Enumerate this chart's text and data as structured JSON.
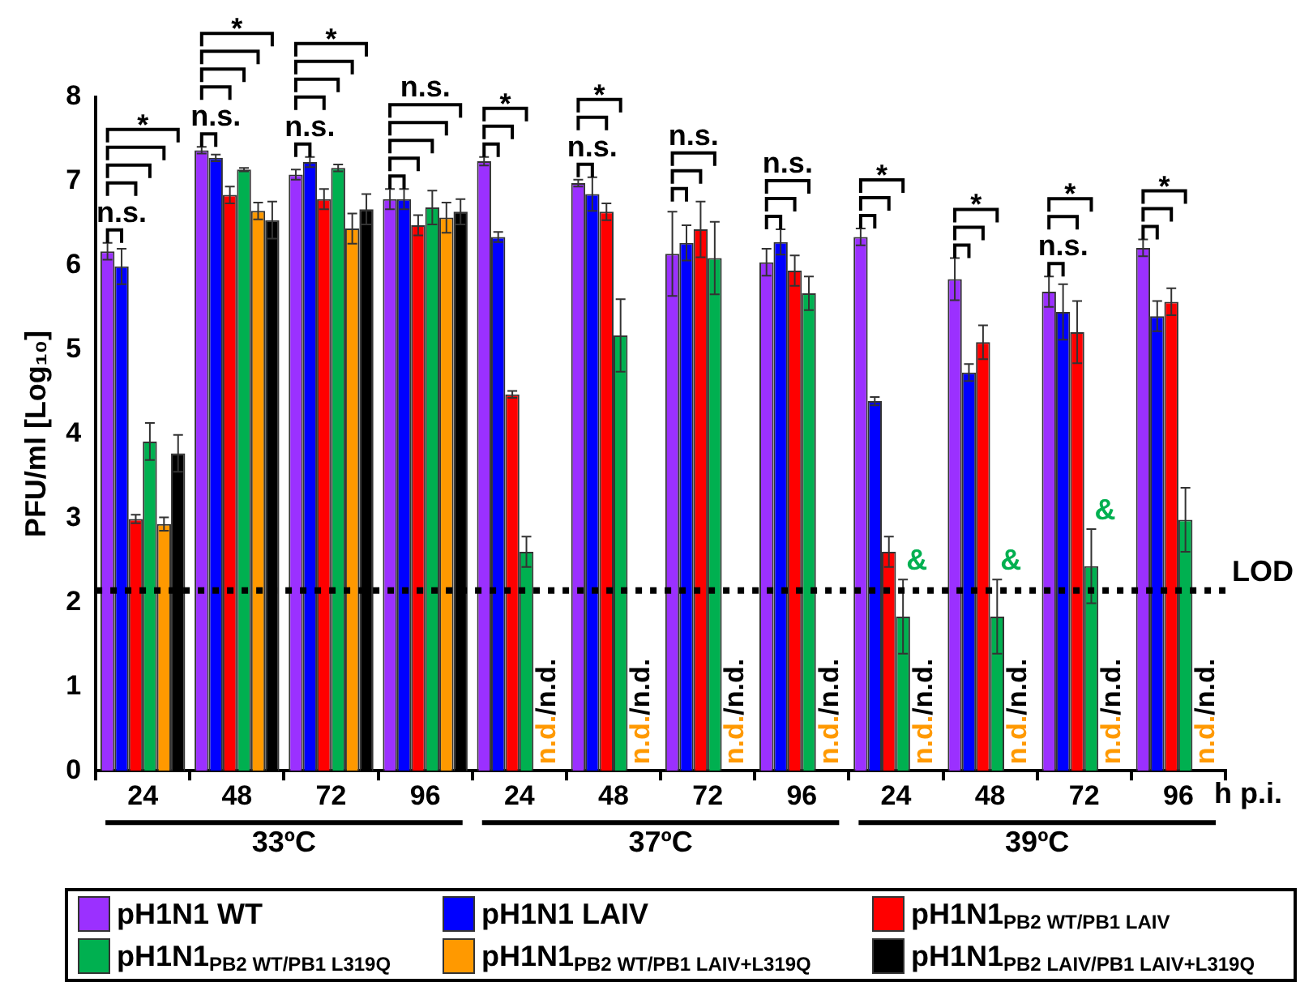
{
  "chart_data": {
    "type": "bar",
    "ylabel": "PFU/ml [Log₁₀]",
    "xlabel": "h p.i.",
    "categories": [
      "24",
      "48",
      "72",
      "96",
      "24",
      "48",
      "72",
      "96",
      "24",
      "48",
      "72",
      "96"
    ],
    "ylim": [
      0,
      8
    ],
    "yticks": [
      0,
      1,
      2,
      3,
      4,
      5,
      6,
      7,
      8
    ],
    "legend": "bottom",
    "series": [
      {
        "name": "pH1N1 WT",
        "color": "#9b30ff",
        "values": [
          6.17,
          7.37,
          7.08,
          6.79,
          7.24,
          6.98,
          6.14,
          6.04,
          6.34,
          5.84,
          5.69,
          6.21
        ],
        "errors": [
          0.1,
          0.04,
          0.06,
          0.12,
          0.05,
          0.04,
          0.5,
          0.16,
          0.1,
          0.25,
          0.18,
          0.1
        ]
      },
      {
        "name": "pH1N1 LAIV",
        "color": "#0000ff",
        "values": [
          5.99,
          7.28,
          7.23,
          6.79,
          6.34,
          6.85,
          6.27,
          6.28,
          4.39,
          4.73,
          5.45,
          5.4
        ],
        "errors": [
          0.21,
          0.04,
          0.06,
          0.12,
          0.06,
          0.2,
          0.21,
          0.15,
          0.05,
          0.1,
          0.33,
          0.18
        ]
      },
      {
        "name": "pH1N1$_{PB2 WT/PB1 LAIV}$",
        "color": "#ff0000",
        "values": [
          2.99,
          6.84,
          6.79,
          6.48,
          4.47,
          6.64,
          6.43,
          5.94,
          2.6,
          5.09,
          5.21,
          5.57
        ],
        "errors": [
          0.05,
          0.1,
          0.12,
          0.12,
          0.04,
          0.1,
          0.33,
          0.18,
          0.18,
          0.2,
          0.37,
          0.16
        ]
      },
      {
        "name": "pH1N1$_{PB2 WT/PB1 L319Q}$",
        "color": "#00b050",
        "values": [
          3.91,
          7.14,
          7.16,
          6.69,
          2.6,
          5.17,
          6.09,
          5.67,
          1.83,
          1.83,
          2.43,
          2.98
        ],
        "errors": [
          0.22,
          0.02,
          0.04,
          0.2,
          0.18,
          0.43,
          0.43,
          0.2,
          0.44,
          0.44,
          0.44,
          0.38
        ]
      },
      {
        "name": "pH1N1$_{PB2 WT/PB1 LAIV+L319Q}$",
        "color": "#ff9900",
        "values": [
          2.93,
          6.65,
          6.44,
          6.57,
          null,
          null,
          null,
          null,
          null,
          null,
          null,
          null
        ],
        "errors": [
          0.08,
          0.1,
          0.18,
          0.18,
          null,
          null,
          null,
          null,
          null,
          null,
          null,
          null
        ]
      },
      {
        "name": "pH1N1$_{PB2 LAIV/PB1 LAIV+L319Q}$",
        "color": "#000000",
        "values": [
          3.77,
          6.54,
          6.67,
          6.64,
          null,
          null,
          null,
          null,
          null,
          null,
          null,
          null
        ],
        "errors": [
          0.22,
          0.22,
          0.18,
          0.15,
          null,
          null,
          null,
          null,
          null,
          null,
          null,
          null
        ]
      }
    ],
    "ref_lines": [
      {
        "axis": "y",
        "value": 2.14,
        "label": "LOD",
        "line_style": "dotted",
        "color": "#000000"
      }
    ],
    "annotations": [
      "*",
      "n.s.",
      "*",
      "n.s.",
      "*",
      "n.s.",
      "n.s.",
      "*",
      "*",
      "n.s.",
      "n.s.",
      "n.s.",
      "*",
      "*",
      "*",
      "n.s.",
      "*",
      "&",
      "&",
      "&",
      "n.d.",
      "n.d.",
      "n.d.",
      "n.d.",
      "n.d.",
      "n.d.",
      "n.d.",
      "n.d.",
      "/n.d.",
      "/n.d.",
      "/n.d.",
      "/n.d.",
      "/n.d.",
      "/n.d.",
      "/n.d.",
      "/n.d.",
      "33ºC",
      "37ºC",
      "39ºC"
    ]
  }
}
